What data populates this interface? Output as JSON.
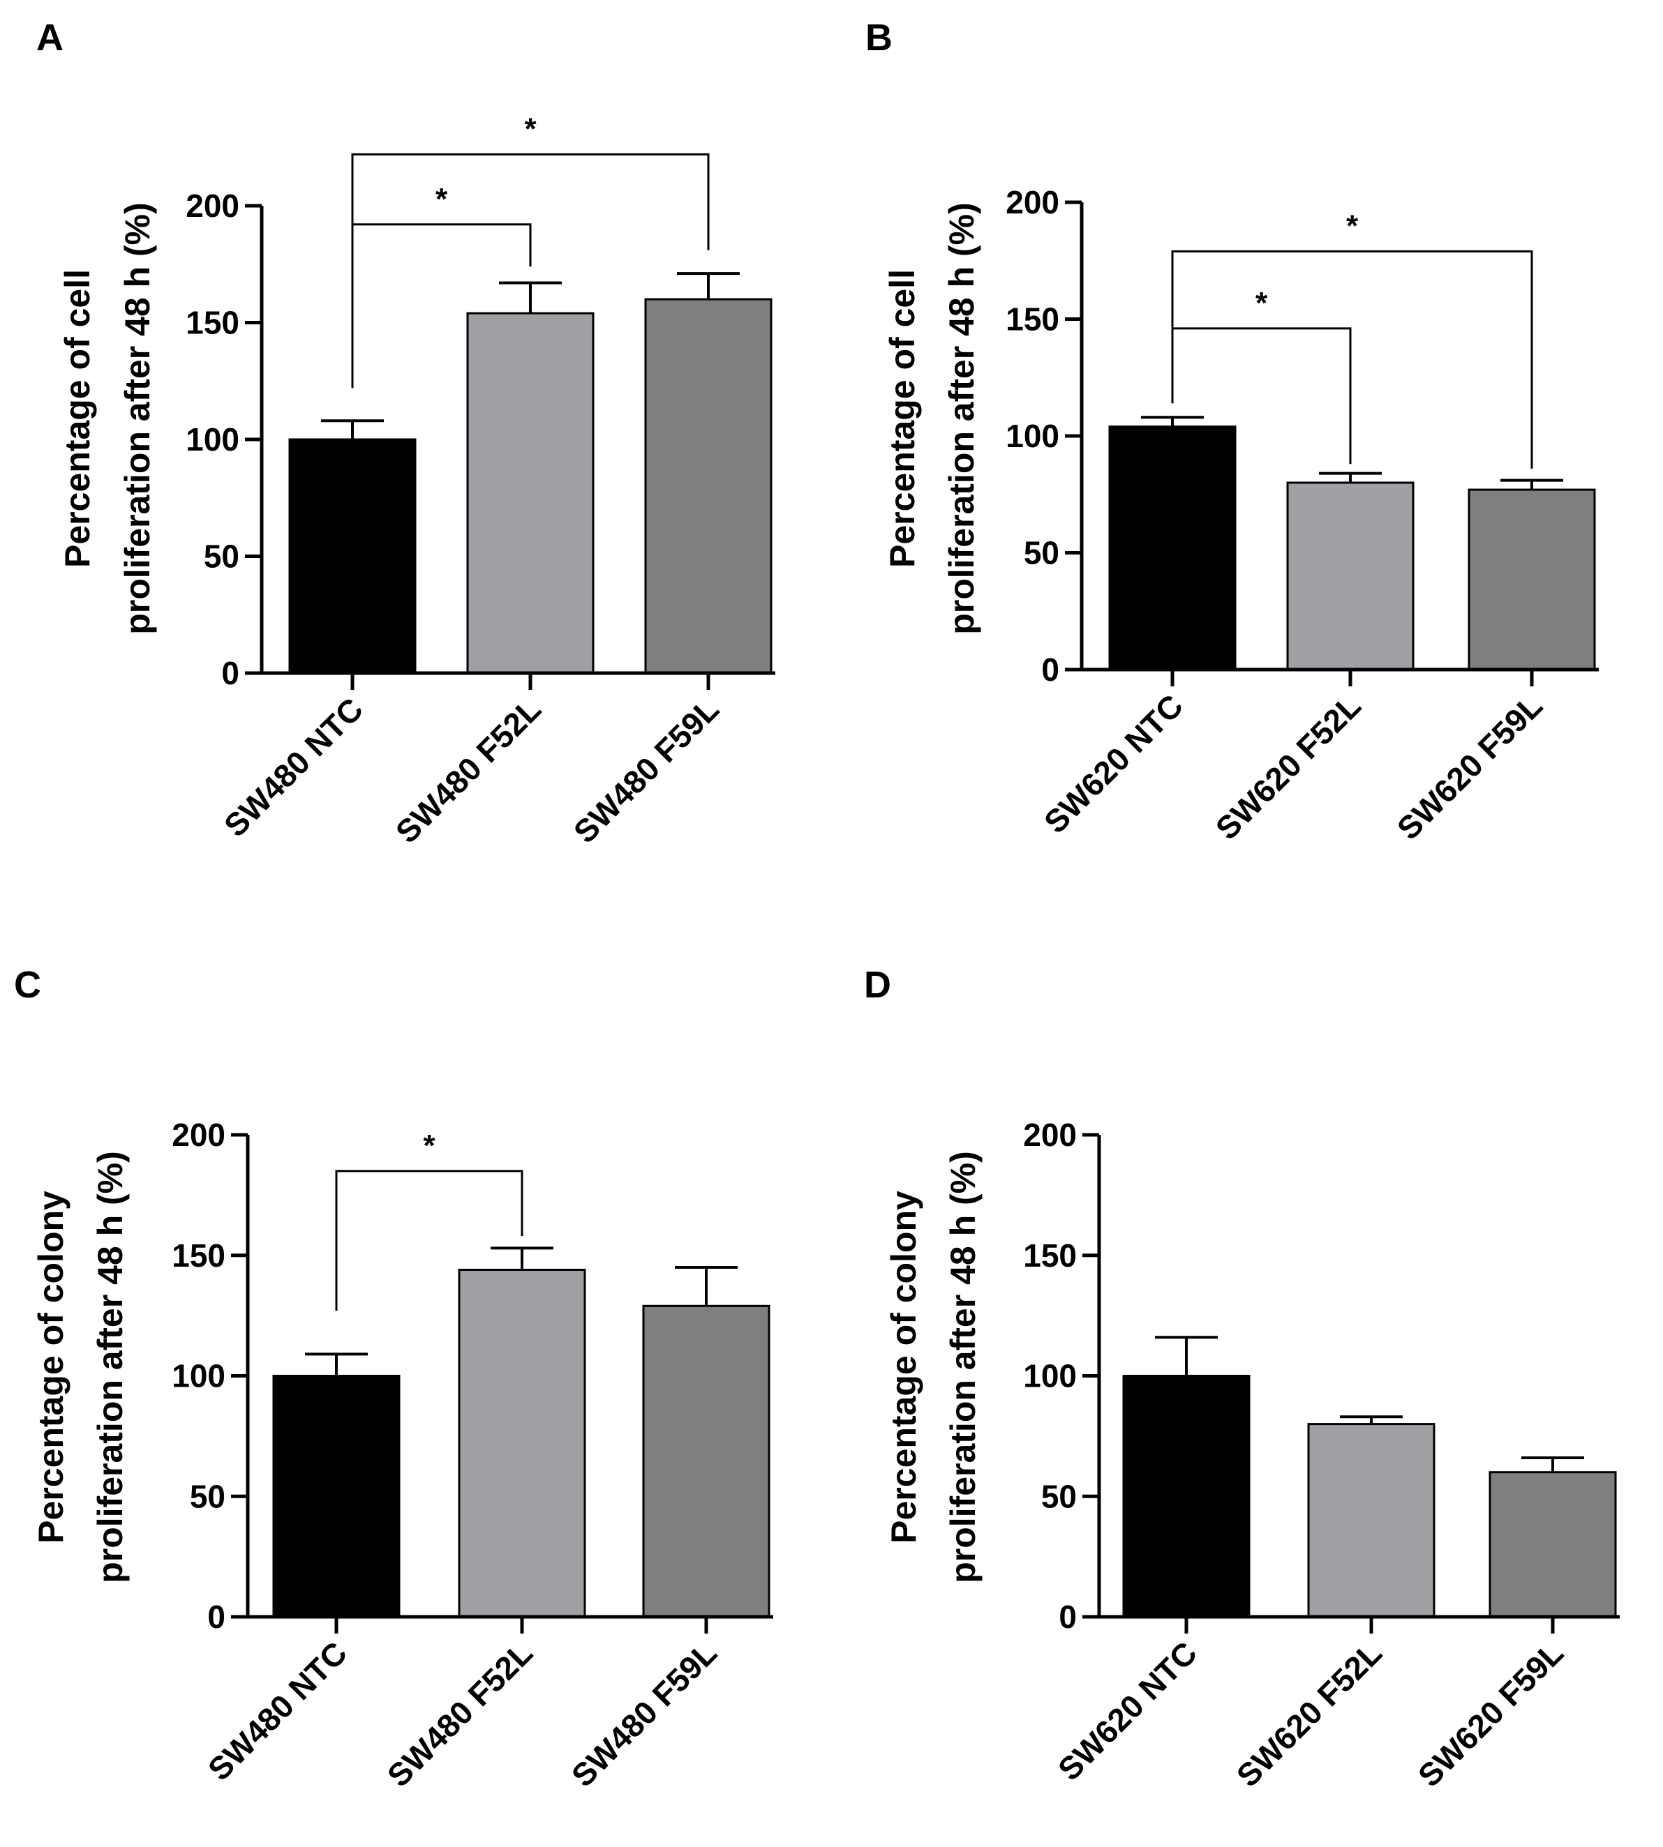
{
  "figure": {
    "panel_count": 4
  },
  "chart_data": [
    {
      "panel": "A",
      "type": "bar",
      "title": "",
      "ylabel_lines": [
        "Percentage of cell",
        "proliferation after 48 h (%)"
      ],
      "xlabel": "",
      "categories": [
        "SW480 NTC",
        "SW480 F52L",
        "SW480 F59L"
      ],
      "values": [
        100,
        154,
        160
      ],
      "errors": [
        8,
        13,
        11
      ],
      "colors": [
        "#000000",
        "#a0a0a4",
        "#7f7f7f"
      ],
      "ylim": [
        0,
        200
      ],
      "yticks": [
        0,
        50,
        100,
        150,
        200
      ],
      "significance": [
        {
          "from": 0,
          "to": 1,
          "label": "*",
          "start": 122,
          "end": 174,
          "top": 192
        },
        {
          "from": 0,
          "to": 2,
          "label": "*",
          "start": 122,
          "end": 181,
          "top": 222
        }
      ]
    },
    {
      "panel": "B",
      "type": "bar",
      "title": "",
      "ylabel_lines": [
        "Percentage of cell",
        "proliferation after 48 h (%)"
      ],
      "xlabel": "",
      "categories": [
        "SW620 NTC",
        "SW620 F52L",
        "SW620 F59L"
      ],
      "values": [
        104,
        80,
        77
      ],
      "errors": [
        4,
        4,
        4
      ],
      "colors": [
        "#000000",
        "#a0a0a4",
        "#7f7f7f"
      ],
      "ylim": [
        0,
        200
      ],
      "yticks": [
        0,
        50,
        100,
        150,
        200
      ],
      "significance": [
        {
          "from": 0,
          "to": 1,
          "label": "*",
          "start": 114,
          "end": 88,
          "top": 146
        },
        {
          "from": 0,
          "to": 2,
          "label": "*",
          "start": 114,
          "end": 86,
          "top": 179
        }
      ]
    },
    {
      "panel": "C",
      "type": "bar",
      "title": "",
      "ylabel_lines": [
        "Percentage of colony",
        "proliferation after 48 h (%)"
      ],
      "xlabel": "",
      "categories": [
        "SW480 NTC",
        "SW480 F52L",
        "SW480 F59L"
      ],
      "values": [
        100,
        144,
        129
      ],
      "errors": [
        9,
        9,
        16
      ],
      "colors": [
        "#000000",
        "#a0a0a4",
        "#7f7f7f"
      ],
      "ylim": [
        0,
        200
      ],
      "yticks": [
        0,
        50,
        100,
        150,
        200
      ],
      "significance": [
        {
          "from": 0,
          "to": 1,
          "label": "*",
          "start": 127,
          "end": 158,
          "top": 185
        }
      ]
    },
    {
      "panel": "D",
      "type": "bar",
      "title": "",
      "ylabel_lines": [
        "Percentage of colony",
        "proliferation after 48 h (%)"
      ],
      "xlabel": "",
      "categories": [
        "SW620 NTC",
        "SW620 F52L",
        "SW620 F59L"
      ],
      "values": [
        100,
        80,
        60
      ],
      "errors": [
        16,
        3,
        6
      ],
      "colors": [
        "#000000",
        "#a0a0a4",
        "#7f7f7f"
      ],
      "ylim": [
        0,
        200
      ],
      "yticks": [
        0,
        50,
        100,
        150,
        200
      ],
      "significance": []
    }
  ]
}
